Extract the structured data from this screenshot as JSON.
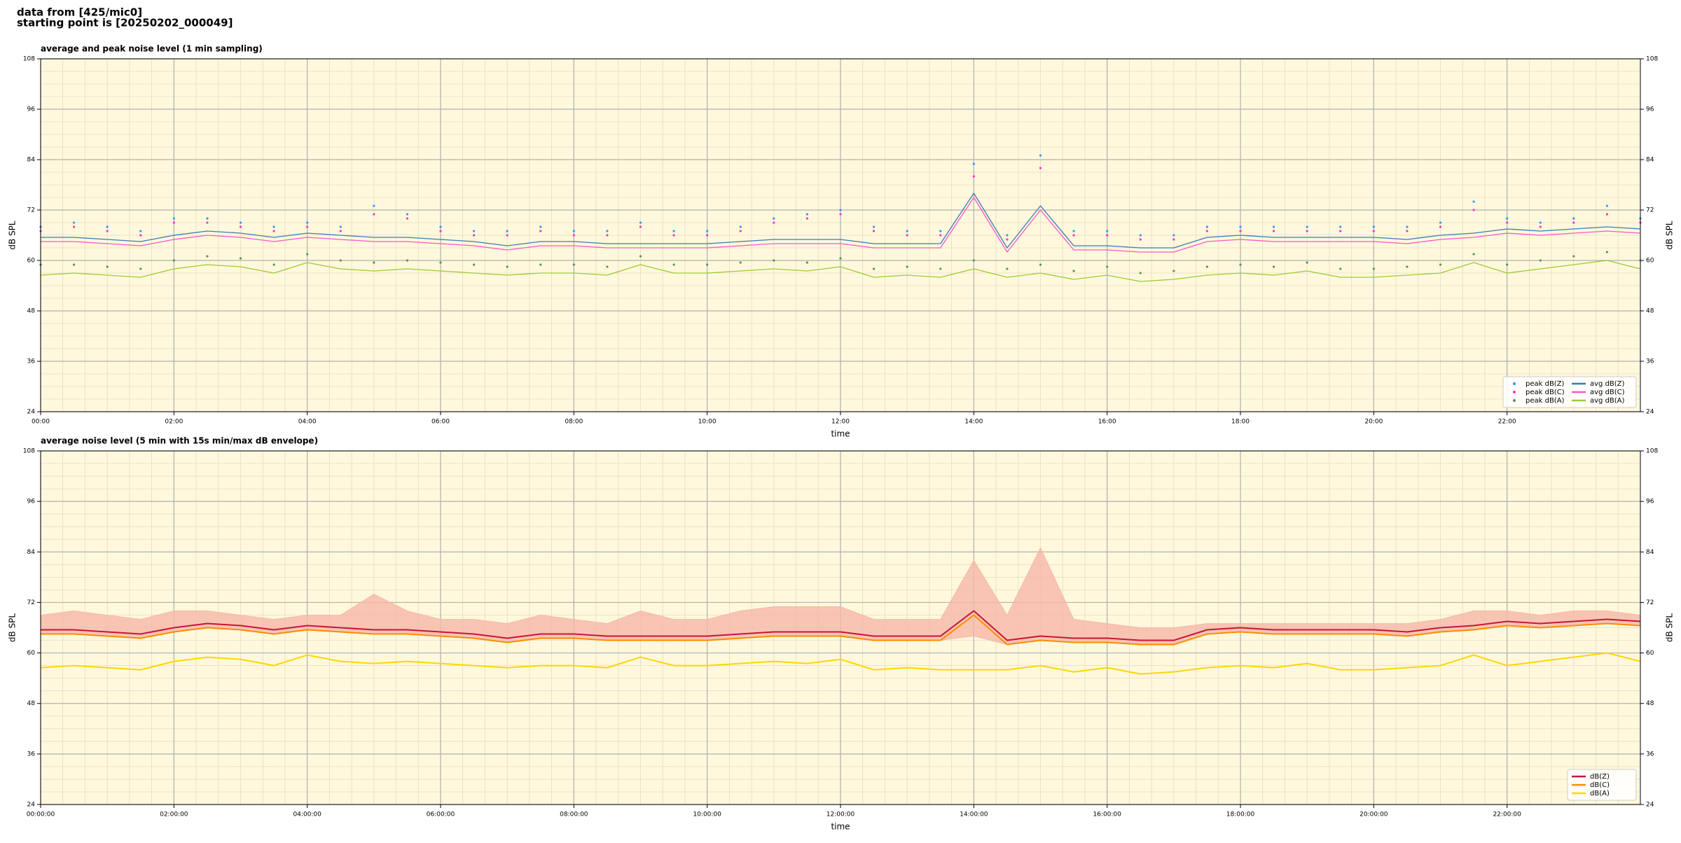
{
  "header": {
    "lines": [
      "data from [425/mic0]",
      "starting point is [20250202_000049]"
    ]
  },
  "chart_data": [
    {
      "type": "line",
      "title": "average and peak noise level (1 min sampling)",
      "xlabel": "time",
      "ylabel": "dB SPL",
      "background": "#fff8dc",
      "grid": true,
      "legend": "lower right",
      "legend_columns": 2,
      "xlim": [
        0,
        24
      ],
      "ylim": [
        24,
        108
      ],
      "xticks": [
        {
          "value": 0,
          "label": "00:00"
        },
        {
          "value": 2,
          "label": "02:00"
        },
        {
          "value": 4,
          "label": "04:00"
        },
        {
          "value": 6,
          "label": "06:00"
        },
        {
          "value": 8,
          "label": "08:00"
        },
        {
          "value": 10,
          "label": "10:00"
        },
        {
          "value": 12,
          "label": "12:00"
        },
        {
          "value": 14,
          "label": "14:00"
        },
        {
          "value": 16,
          "label": "16:00"
        },
        {
          "value": 18,
          "label": "18:00"
        },
        {
          "value": 20,
          "label": "20:00"
        },
        {
          "value": 22,
          "label": "22:00"
        }
      ],
      "yticks": [
        24,
        36,
        48,
        60,
        72,
        84,
        96,
        108
      ],
      "x": [
        0,
        0.5,
        1,
        1.5,
        2,
        2.5,
        3,
        3.5,
        4,
        4.5,
        5,
        5.5,
        6,
        6.5,
        7,
        7.5,
        8,
        8.5,
        9,
        9.5,
        10,
        10.5,
        11,
        11.5,
        12,
        12.5,
        13,
        13.5,
        14,
        14.5,
        15,
        15.5,
        16,
        16.5,
        17,
        17.5,
        18,
        18.5,
        19,
        19.5,
        20,
        20.5,
        21,
        21.5,
        22,
        22.5,
        23,
        23.5,
        24
      ],
      "series": [
        {
          "name": "peak dB(Z)",
          "color": "#3399ff",
          "style": "points",
          "values": [
            68,
            69,
            68,
            67,
            70,
            70,
            69,
            68,
            69,
            68,
            73,
            71,
            68,
            67,
            67,
            68,
            67,
            67,
            69,
            67,
            67,
            68,
            70,
            71,
            72,
            68,
            67,
            67,
            83,
            66,
            85,
            67,
            67,
            66,
            66,
            68,
            68,
            68,
            68,
            68,
            68,
            68,
            69,
            74,
            70,
            69,
            70,
            73,
            70
          ]
        },
        {
          "name": "peak dB(C)",
          "color": "#ff33cc",
          "style": "points",
          "values": [
            67,
            68,
            67,
            66,
            69,
            69,
            68,
            67,
            68,
            67,
            71,
            70,
            67,
            66,
            66,
            67,
            66,
            66,
            68,
            66,
            66,
            67,
            69,
            70,
            71,
            67,
            66,
            66,
            80,
            65,
            82,
            66,
            66,
            65,
            65,
            67,
            67,
            67,
            67,
            67,
            67,
            67,
            68,
            72,
            69,
            68,
            69,
            71,
            69
          ]
        },
        {
          "name": "peak dB(A)",
          "color": "#55994a",
          "style": "points",
          "values": [
            59,
            59,
            58.5,
            58,
            60,
            61,
            60.5,
            59,
            61.5,
            60,
            59.5,
            60,
            59.5,
            59,
            58.5,
            59,
            59,
            58.5,
            61,
            59,
            59,
            59.5,
            60,
            59.5,
            60.5,
            58,
            58.5,
            58,
            60,
            58,
            59,
            57.5,
            58.5,
            57,
            57.5,
            58.5,
            59,
            58.5,
            59.5,
            58,
            58,
            58.5,
            59,
            61.5,
            59,
            60,
            61,
            62,
            60
          ]
        },
        {
          "name": "avg dB(Z)",
          "color": "#3a7ab8",
          "style": "line",
          "values": [
            65.5,
            65.5,
            65,
            64.5,
            66,
            67,
            66.5,
            65.5,
            66.5,
            66,
            65.5,
            65.5,
            65,
            64.5,
            63.5,
            64.5,
            64.5,
            64,
            64,
            64,
            64,
            64.5,
            65,
            65,
            65,
            64,
            64,
            64,
            76,
            63,
            73,
            63.5,
            63.5,
            63,
            63,
            65.5,
            66,
            65.5,
            65.5,
            65.5,
            65.5,
            65,
            66,
            66.5,
            67.5,
            67,
            67.5,
            68,
            67.5
          ]
        },
        {
          "name": "avg dB(C)",
          "color": "#ff55cc",
          "style": "line",
          "values": [
            64.5,
            64.5,
            64,
            63.5,
            65,
            66,
            65.5,
            64.5,
            65.5,
            65,
            64.5,
            64.5,
            64,
            63.5,
            62.5,
            63.5,
            63.5,
            63,
            63,
            63,
            63,
            63.5,
            64,
            64,
            64,
            63,
            63,
            63,
            75,
            62,
            72,
            62.5,
            62.5,
            62,
            62,
            64.5,
            65,
            64.5,
            64.5,
            64.5,
            64.5,
            64,
            65,
            65.5,
            66.5,
            66,
            66.5,
            67,
            66.5
          ]
        },
        {
          "name": "avg dB(A)",
          "color": "#9acd32",
          "style": "line",
          "values": [
            56.5,
            57,
            56.5,
            56,
            58,
            59,
            58.5,
            57,
            59.5,
            58,
            57.5,
            58,
            57.5,
            57,
            56.5,
            57,
            57,
            56.5,
            59,
            57,
            57,
            57.5,
            58,
            57.5,
            58.5,
            56,
            56.5,
            56,
            58,
            56,
            57,
            55.5,
            56.5,
            55,
            55.5,
            56.5,
            57,
            56.5,
            57.5,
            56,
            56,
            56.5,
            57,
            59.5,
            57,
            58,
            59,
            60,
            58
          ]
        }
      ]
    },
    {
      "type": "line",
      "title": "average noise level (5 min with 15s min/max dB envelope)",
      "xlabel": "time",
      "ylabel": "dB SPL",
      "background": "#fff8dc",
      "grid": true,
      "legend": "lower right",
      "legend_columns": 1,
      "xlim": [
        0,
        24
      ],
      "ylim": [
        24,
        108
      ],
      "xticks": [
        {
          "value": 0,
          "label": "00:00:00"
        },
        {
          "value": 2,
          "label": "02:00:00"
        },
        {
          "value": 4,
          "label": "04:00:00"
        },
        {
          "value": 6,
          "label": "06:00:00"
        },
        {
          "value": 8,
          "label": "08:00:00"
        },
        {
          "value": 10,
          "label": "10:00:00"
        },
        {
          "value": 12,
          "label": "12:00:00"
        },
        {
          "value": 14,
          "label": "14:00:00"
        },
        {
          "value": 16,
          "label": "16:00:00"
        },
        {
          "value": 18,
          "label": "18:00:00"
        },
        {
          "value": 20,
          "label": "20:00:00"
        },
        {
          "value": 22,
          "label": "22:00:00"
        }
      ],
      "yticks": [
        24,
        36,
        48,
        60,
        72,
        84,
        96,
        108
      ],
      "x": [
        0,
        0.5,
        1,
        1.5,
        2,
        2.5,
        3,
        3.5,
        4,
        4.5,
        5,
        5.5,
        6,
        6.5,
        7,
        7.5,
        8,
        8.5,
        9,
        9.5,
        10,
        10.5,
        11,
        11.5,
        12,
        12.5,
        13,
        13.5,
        14,
        14.5,
        15,
        15.5,
        16,
        16.5,
        17,
        17.5,
        18,
        18.5,
        19,
        19.5,
        20,
        20.5,
        21,
        21.5,
        22,
        22.5,
        23,
        23.5,
        24
      ],
      "envelope": {
        "color": "#f5b8a8",
        "max": [
          69,
          70,
          69,
          68,
          70,
          70,
          69,
          68,
          69,
          69,
          74,
          70,
          68,
          68,
          67,
          69,
          68,
          67,
          70,
          68,
          68,
          70,
          71,
          71,
          71,
          68,
          68,
          68,
          82,
          69,
          85,
          68,
          67,
          66,
          66,
          67,
          67,
          67,
          67,
          67,
          67,
          67,
          68,
          70,
          70,
          69,
          70,
          70,
          69
        ],
        "min": [
          64.5,
          64.5,
          64,
          63.5,
          65,
          66,
          65.5,
          64.5,
          65.5,
          65,
          64.5,
          64.5,
          64,
          63.5,
          62.5,
          63.5,
          63.5,
          63,
          63,
          63,
          63,
          63.5,
          64,
          64,
          64,
          63,
          63,
          63,
          64,
          62,
          63,
          62.5,
          62.5,
          62,
          62,
          64.5,
          65,
          64.5,
          64.5,
          64.5,
          64.5,
          64,
          65,
          65.5,
          66.5,
          66,
          66.5,
          67,
          66.5
        ]
      },
      "series": [
        {
          "name": "dB(Z)",
          "color": "#c8143c",
          "style": "line",
          "values": [
            65.5,
            65.5,
            65,
            64.5,
            66,
            67,
            66.5,
            65.5,
            66.5,
            66,
            65.5,
            65.5,
            65,
            64.5,
            63.5,
            64.5,
            64.5,
            64,
            64,
            64,
            64,
            64.5,
            65,
            65,
            65,
            64,
            64,
            64,
            70,
            63,
            64,
            63.5,
            63.5,
            63,
            63,
            65.5,
            66,
            65.5,
            65.5,
            65.5,
            65.5,
            65,
            66,
            66.5,
            67.5,
            67,
            67.5,
            68,
            67.5
          ]
        },
        {
          "name": "dB(C)",
          "color": "#ff8c00",
          "style": "line",
          "values": [
            64.5,
            64.5,
            64,
            63.5,
            65,
            66,
            65.5,
            64.5,
            65.5,
            65,
            64.5,
            64.5,
            64,
            63.5,
            62.5,
            63.5,
            63.5,
            63,
            63,
            63,
            63,
            63.5,
            64,
            64,
            64,
            63,
            63,
            63,
            69,
            62,
            63,
            62.5,
            62.5,
            62,
            62,
            64.5,
            65,
            64.5,
            64.5,
            64.5,
            64.5,
            64,
            65,
            65.5,
            66.5,
            66,
            66.5,
            67,
            66.5
          ]
        },
        {
          "name": "dB(A)",
          "color": "#ffd700",
          "style": "line",
          "values": [
            56.5,
            57,
            56.5,
            56,
            58,
            59,
            58.5,
            57,
            59.5,
            58,
            57.5,
            58,
            57.5,
            57,
            56.5,
            57,
            57,
            56.5,
            59,
            57,
            57,
            57.5,
            58,
            57.5,
            58.5,
            56,
            56.5,
            56,
            56,
            56,
            57,
            55.5,
            56.5,
            55,
            55.5,
            56.5,
            57,
            56.5,
            57.5,
            56,
            56,
            56.5,
            57,
            59.5,
            57,
            58,
            59,
            60,
            58
          ]
        }
      ]
    }
  ]
}
